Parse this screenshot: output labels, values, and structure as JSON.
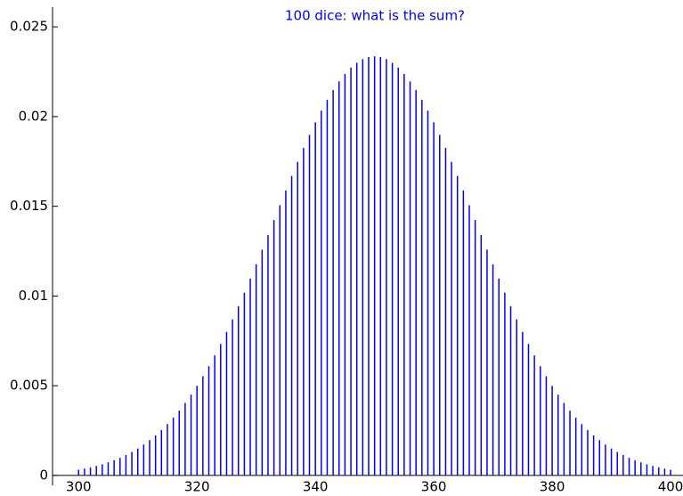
{
  "chart_data": {
    "type": "stem",
    "title": "100 dice: what is the sum?",
    "x": [
      300,
      301,
      302,
      303,
      304,
      305,
      306,
      307,
      308,
      309,
      310,
      311,
      312,
      313,
      314,
      315,
      316,
      317,
      318,
      319,
      320,
      321,
      322,
      323,
      324,
      325,
      326,
      327,
      328,
      329,
      330,
      331,
      332,
      333,
      334,
      335,
      336,
      337,
      338,
      339,
      340,
      341,
      342,
      343,
      344,
      345,
      346,
      347,
      348,
      349,
      350,
      351,
      352,
      353,
      354,
      355,
      356,
      357,
      358,
      359,
      360,
      361,
      362,
      363,
      364,
      365,
      366,
      367,
      368,
      369,
      370,
      371,
      372,
      373,
      374,
      375,
      376,
      377,
      378,
      379,
      380,
      381,
      382,
      383,
      384,
      385,
      386,
      387,
      388,
      389,
      390,
      391,
      392,
      393,
      394,
      395,
      396,
      397,
      398,
      399,
      400
    ],
    "values": [
      0.00032,
      0.00038,
      0.00045,
      0.00053,
      0.00062,
      0.00073,
      0.00085,
      0.00098,
      0.00114,
      0.00131,
      0.0015,
      0.00172,
      0.00197,
      0.00223,
      0.00253,
      0.00286,
      0.00322,
      0.00361,
      0.00404,
      0.0045,
      0.00499,
      0.00553,
      0.00609,
      0.00669,
      0.00733,
      0.008,
      0.0087,
      0.00943,
      0.01019,
      0.01097,
      0.01177,
      0.01258,
      0.0134,
      0.01423,
      0.01506,
      0.01588,
      0.01669,
      0.01748,
      0.01825,
      0.01898,
      0.01968,
      0.02033,
      0.02093,
      0.02148,
      0.02196,
      0.02238,
      0.02273,
      0.023,
      0.0232,
      0.02332,
      0.02336,
      0.02332,
      0.0232,
      0.023,
      0.02273,
      0.02238,
      0.02196,
      0.02148,
      0.02093,
      0.02033,
      0.01968,
      0.01898,
      0.01825,
      0.01748,
      0.01669,
      0.01588,
      0.01506,
      0.01423,
      0.0134,
      0.01258,
      0.01177,
      0.01097,
      0.01019,
      0.00943,
      0.0087,
      0.008,
      0.00733,
      0.00669,
      0.00609,
      0.00553,
      0.00499,
      0.0045,
      0.00404,
      0.00361,
      0.00322,
      0.00286,
      0.00253,
      0.00223,
      0.00197,
      0.00172,
      0.0015,
      0.00131,
      0.00114,
      0.00098,
      0.00085,
      0.00073,
      0.00062,
      0.00053,
      0.00045,
      0.00038,
      0.00032
    ],
    "color": "#0000ff",
    "xlim": [
      295.6,
      402.1
    ],
    "xticks": [
      300,
      320,
      340,
      360,
      380,
      400
    ],
    "ylim": [
      -0.00055,
      0.0261
    ],
    "yticks": [
      0,
      0.005,
      0.01,
      0.015,
      0.02,
      0.025
    ]
  }
}
